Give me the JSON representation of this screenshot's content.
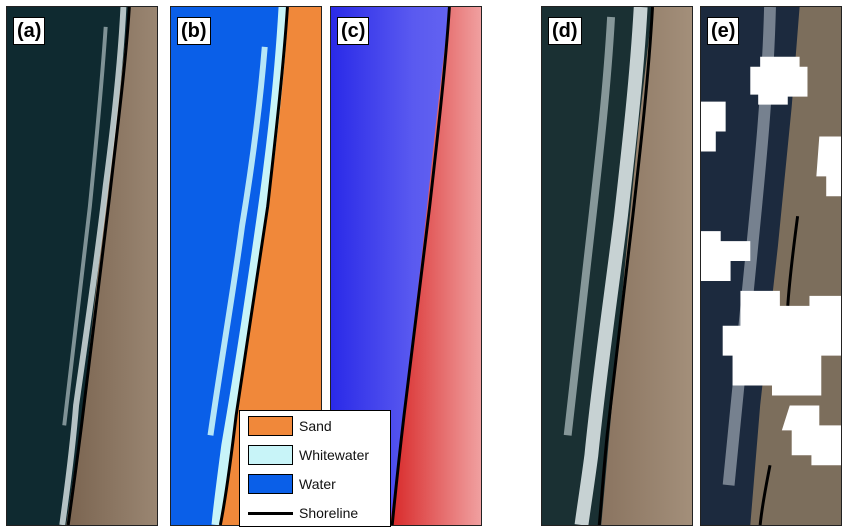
{
  "panels": [
    {
      "label": "(a)"
    },
    {
      "label": "(b)"
    },
    {
      "label": "(c)"
    },
    {
      "label": "(d)"
    },
    {
      "label": "(e)"
    }
  ],
  "legend": {
    "items": [
      {
        "label": "Sand",
        "color": "#f0883a"
      },
      {
        "label": "Whitewater",
        "color": "#c8f4f8"
      },
      {
        "label": "Water",
        "color": "#0a5fe8"
      },
      {
        "label": "Shoreline",
        "color": "#000000"
      }
    ]
  },
  "colors": {
    "ocean": "#0f2a30",
    "beach": "#8a7460",
    "surf": "#dfe9ea",
    "water_class": "#0a5fe8",
    "sand_class": "#f0883a",
    "whitewater_class": "#c8f4f8",
    "index_low": "#2a2ae8",
    "index_high": "#e84848",
    "cloud": "#ffffff"
  }
}
